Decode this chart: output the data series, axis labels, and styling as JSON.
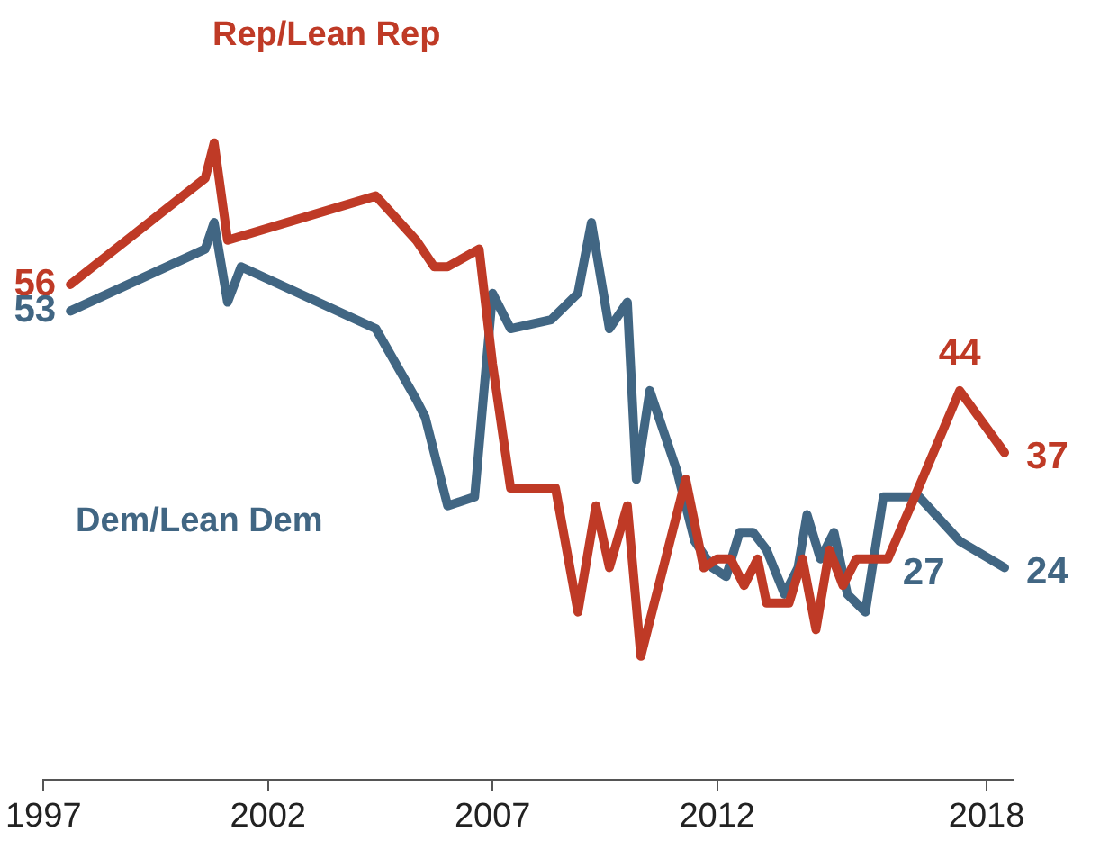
{
  "chart_data": {
    "type": "line",
    "xlim": [
      1997,
      2018.6
    ],
    "xticks": [
      1997,
      2002,
      2007,
      2012,
      2018
    ],
    "tick_labels": "x",
    "grid": false,
    "legend": false,
    "marker": "none",
    "line_style": "solid",
    "series": [
      {
        "name": "Rep/Lean Rep",
        "color": "#bf3a26",
        "x": [
          1997.6,
          2000.6,
          2000.8,
          2001.1,
          2004.4,
          2005.3,
          2005.7,
          2006.0,
          2006.7,
          2007.0,
          2007.4,
          2008.4,
          2008.9,
          2009.3,
          2009.6,
          2010.0,
          2010.3,
          2011.3,
          2011.7,
          2012.0,
          2012.3,
          2012.6,
          2012.9,
          2013.1,
          2013.6,
          2013.9,
          2014.2,
          2014.5,
          2014.8,
          2015.1,
          2015.4,
          2015.8,
          2016.4,
          2017.4,
          2018.4
        ],
        "values": [
          56,
          68,
          72,
          61,
          66,
          61,
          58,
          58,
          60,
          47,
          33,
          33,
          19,
          31,
          24,
          31,
          14,
          34,
          24,
          25,
          25,
          22,
          25,
          20,
          20,
          25,
          17,
          26,
          22,
          25,
          25,
          25,
          32,
          44,
          37
        ],
        "value_labels": [
          "56",
          null,
          null,
          null,
          null,
          null,
          null,
          null,
          null,
          null,
          null,
          null,
          null,
          null,
          null,
          null,
          null,
          null,
          null,
          null,
          null,
          null,
          null,
          null,
          null,
          null,
          null,
          null,
          null,
          null,
          null,
          null,
          null,
          "44",
          "37"
        ]
      },
      {
        "name": "Dem/Lean Dem",
        "color": "#416683",
        "x": [
          1997.6,
          2000.6,
          2000.8,
          2001.1,
          2001.4,
          2004.4,
          2005.3,
          2005.5,
          2006.0,
          2006.6,
          2007.0,
          2007.4,
          2008.3,
          2008.9,
          2009.2,
          2009.6,
          2010.0,
          2010.2,
          2010.5,
          2011.1,
          2011.5,
          2011.9,
          2012.2,
          2012.5,
          2012.8,
          2013.1,
          2013.5,
          2013.8,
          2014.0,
          2014.3,
          2014.6,
          2014.9,
          2015.3,
          2015.7,
          2016.5,
          2017.4,
          2018.4
        ],
        "values": [
          53,
          60,
          63,
          54,
          58,
          51,
          43,
          41,
          31,
          32,
          55,
          51,
          52,
          55,
          63,
          51,
          54,
          34,
          44,
          35,
          27,
          24,
          23,
          28,
          28,
          26,
          21,
          24,
          30,
          25,
          28,
          21,
          19,
          32,
          32,
          27,
          24
        ],
        "value_labels": [
          "53",
          null,
          null,
          null,
          null,
          null,
          null,
          null,
          null,
          null,
          null,
          null,
          null,
          null,
          null,
          null,
          null,
          null,
          null,
          null,
          null,
          null,
          null,
          null,
          null,
          null,
          null,
          null,
          null,
          null,
          null,
          null,
          null,
          null,
          null,
          "27",
          "24"
        ]
      }
    ]
  }
}
